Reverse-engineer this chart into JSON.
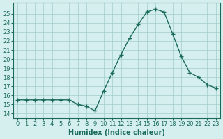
{
  "x": [
    0,
    1,
    2,
    3,
    4,
    5,
    6,
    7,
    8,
    9,
    10,
    11,
    12,
    13,
    14,
    15,
    16,
    17,
    18,
    19,
    20,
    21,
    22,
    23
  ],
  "y": [
    15.5,
    15.5,
    15.5,
    15.5,
    15.5,
    15.5,
    15.5,
    15.0,
    14.8,
    14.3,
    16.5,
    18.5,
    20.5,
    22.3,
    23.8,
    25.2,
    25.5,
    25.2,
    22.8,
    20.3,
    18.5,
    18.0,
    17.2,
    16.8
  ],
  "xlabel": "Humidex (Indice chaleur)",
  "xlim": [
    -0.5,
    23.5
  ],
  "ylim": [
    13.5,
    26.2
  ],
  "yticks": [
    14,
    15,
    16,
    17,
    18,
    19,
    20,
    21,
    22,
    23,
    24,
    25
  ],
  "xticks": [
    0,
    1,
    2,
    3,
    4,
    5,
    6,
    7,
    8,
    9,
    10,
    11,
    12,
    13,
    14,
    15,
    16,
    17,
    18,
    19,
    20,
    21,
    22,
    23
  ],
  "line_color": "#1a6b5a",
  "marker": "+",
  "bg_color": "#d5eeee",
  "grid_color": "#a0cccc",
  "label_fontsize": 7,
  "tick_fontsize": 6
}
